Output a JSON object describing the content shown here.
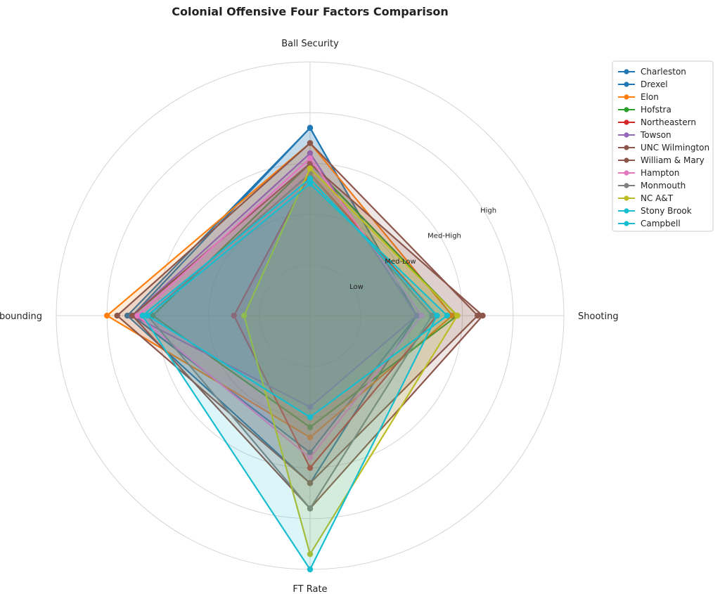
{
  "chart_data": {
    "type": "radar",
    "title": "Colonial Offensive Four Factors Comparison",
    "axes": [
      "Ball Security",
      "Shooting",
      "FT Rate",
      "Off Rebounding"
    ],
    "rings": [
      "Low",
      "Med-Low",
      "Med-High",
      "High"
    ],
    "rlim": [
      0,
      5
    ],
    "grid": true,
    "legend_position": "top-right",
    "series": [
      {
        "name": "Charleston",
        "color": "#1f77b4",
        "values": [
          3.7,
          2.1,
          2.7,
          3.5
        ]
      },
      {
        "name": "Drexel",
        "color": "#1f77b4",
        "values": [
          3.7,
          2.1,
          3.3,
          3.6
        ]
      },
      {
        "name": "Elon",
        "color": "#ff7f0e",
        "values": [
          3.4,
          2.8,
          2.4,
          4.0
        ]
      },
      {
        "name": "Hofstra",
        "color": "#2ca02c",
        "values": [
          3.0,
          2.9,
          2.2,
          3.1
        ]
      },
      {
        "name": "Northeastern",
        "color": "#d62728",
        "values": [
          2.8,
          2.5,
          3.0,
          1.5
        ]
      },
      {
        "name": "Towson",
        "color": "#9467bd",
        "values": [
          3.2,
          2.1,
          1.8,
          3.5
        ]
      },
      {
        "name": "UNC Wilmington",
        "color": "#8c564b",
        "values": [
          3.4,
          3.3,
          3.3,
          3.8
        ]
      },
      {
        "name": "William & Mary",
        "color": "#8c564b",
        "values": [
          3.0,
          3.4,
          3.8,
          3.5
        ]
      },
      {
        "name": "Hampton",
        "color": "#e377c2",
        "values": [
          3.1,
          2.2,
          2.8,
          3.4
        ]
      },
      {
        "name": "Monmouth",
        "color": "#7f7f7f",
        "values": [
          2.8,
          2.4,
          3.8,
          3.2
        ]
      },
      {
        "name": "NC A&T",
        "color": "#bcbd22",
        "values": [
          2.9,
          2.9,
          4.7,
          1.3
        ]
      },
      {
        "name": "Stony Brook",
        "color": "#17becf",
        "values": [
          2.6,
          2.7,
          2.0,
          3.2
        ]
      },
      {
        "name": "Campbell",
        "color": "#17becf",
        "values": [
          2.7,
          2.5,
          5.0,
          3.3
        ]
      }
    ]
  }
}
